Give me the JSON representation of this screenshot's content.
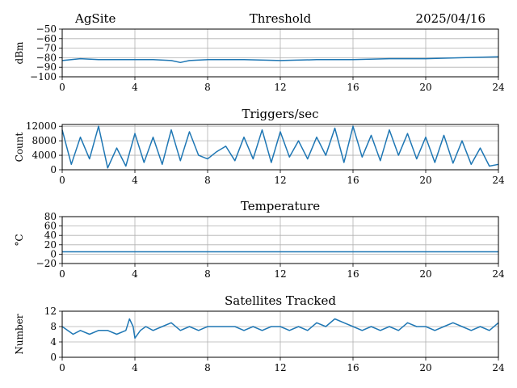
{
  "header": {
    "site": "AgSite",
    "date": "2025/04/16"
  },
  "colors": {
    "series": "#1f77b4",
    "grid": "#b0b0b0"
  },
  "chart_data": [
    {
      "type": "line",
      "title": "Threshold",
      "xlabel": "",
      "ylabel": "dBm",
      "xlim": [
        0,
        24
      ],
      "ylim": [
        -100,
        -50
      ],
      "xticks": [
        "0",
        "4",
        "8",
        "12",
        "16",
        "20",
        "24"
      ],
      "yticks": [
        "−50",
        "−60",
        "−70",
        "−80",
        "−90",
        "−100"
      ],
      "yticks_values": [
        -50,
        -60,
        -70,
        -80,
        -90,
        -100
      ],
      "grid": true,
      "series": [
        {
          "x": [
            0,
            1,
            2,
            3,
            4,
            5,
            6,
            6.5,
            7,
            8,
            10,
            12,
            14,
            16,
            18,
            20,
            22,
            24
          ],
          "values": [
            -83,
            -81,
            -82,
            -82,
            -82,
            -82,
            -83,
            -85,
            -83,
            -82,
            -82,
            -83,
            -82,
            -82,
            -81,
            -81,
            -80,
            -79
          ]
        }
      ]
    },
    {
      "type": "line",
      "title": "Triggers/sec",
      "xlabel": "",
      "ylabel": "Count",
      "xlim": [
        0,
        24
      ],
      "ylim": [
        0,
        12500
      ],
      "xticks": [
        "0",
        "4",
        "8",
        "12",
        "16",
        "20",
        "24"
      ],
      "yticks": [
        "0",
        "4000",
        "8000",
        "12000"
      ],
      "yticks_values": [
        0,
        4000,
        8000,
        12000
      ],
      "grid": true,
      "series": [
        {
          "x": [
            0,
            0.5,
            1,
            1.5,
            2,
            2.5,
            3,
            3.5,
            4,
            4.5,
            5,
            5.5,
            6,
            6.5,
            7,
            7.5,
            8,
            8.5,
            9,
            9.5,
            10,
            10.5,
            11,
            11.5,
            12,
            12.5,
            13,
            13.5,
            14,
            14.5,
            15,
            15.5,
            16,
            16.5,
            17,
            17.5,
            18,
            18.5,
            19,
            19.5,
            20,
            20.5,
            21,
            21.5,
            22,
            22.5,
            23,
            23.5,
            24
          ],
          "values": [
            11000,
            1500,
            9000,
            3000,
            12000,
            500,
            6000,
            1000,
            10000,
            2000,
            9000,
            1500,
            11000,
            2500,
            10500,
            4000,
            3000,
            5000,
            6500,
            2500,
            9000,
            3000,
            11000,
            2000,
            10500,
            3500,
            8000,
            3000,
            9000,
            4000,
            11500,
            2000,
            12000,
            3500,
            9500,
            2500,
            11000,
            4000,
            10000,
            3000,
            9000,
            2000,
            9500,
            1800,
            8000,
            1500,
            6000,
            1000,
            1500
          ]
        }
      ]
    },
    {
      "type": "line",
      "title": "Temperature",
      "xlabel": "",
      "ylabel": "°C",
      "xlim": [
        0,
        24
      ],
      "ylim": [
        -20,
        80
      ],
      "xticks": [
        "0",
        "4",
        "8",
        "12",
        "16",
        "20",
        "24"
      ],
      "yticks": [
        "−20",
        "0",
        "20",
        "40",
        "60",
        "80"
      ],
      "yticks_values": [
        -20,
        0,
        20,
        40,
        60,
        80
      ],
      "grid": true,
      "series": [
        {
          "x": [
            0,
            24
          ],
          "values": [
            5,
            5
          ]
        }
      ]
    },
    {
      "type": "line",
      "title": "Satellites Tracked",
      "xlabel": "",
      "ylabel": "Number",
      "xlim": [
        0,
        24
      ],
      "ylim": [
        0,
        12
      ],
      "xticks": [
        "0",
        "4",
        "8",
        "12",
        "16",
        "20",
        "24"
      ],
      "yticks": [
        "0",
        "4",
        "8",
        "12"
      ],
      "yticks_values": [
        0,
        4,
        8,
        12
      ],
      "grid": true,
      "series": [
        {
          "x": [
            0,
            0.3,
            0.6,
            1,
            1.5,
            2,
            2.5,
            3,
            3.5,
            3.7,
            3.9,
            4,
            4.3,
            4.6,
            5,
            5.5,
            6,
            6.5,
            7,
            7.5,
            8,
            8.5,
            9,
            9.5,
            10,
            10.5,
            11,
            11.5,
            12,
            12.5,
            13,
            13.5,
            14,
            14.5,
            15,
            15.5,
            16,
            16.5,
            17,
            17.5,
            18,
            18.5,
            19,
            19.5,
            20,
            20.5,
            21,
            21.5,
            22,
            22.5,
            23,
            23.5,
            24
          ],
          "values": [
            8,
            7,
            6,
            7,
            6,
            7,
            7,
            6,
            7,
            10,
            8,
            5,
            7,
            8,
            7,
            8,
            9,
            7,
            8,
            7,
            8,
            8,
            8,
            8,
            7,
            8,
            7,
            8,
            8,
            7,
            8,
            7,
            9,
            8,
            10,
            9,
            8,
            7,
            8,
            7,
            8,
            7,
            9,
            8,
            8,
            7,
            8,
            9,
            8,
            7,
            8,
            7,
            9
          ]
        }
      ]
    }
  ]
}
